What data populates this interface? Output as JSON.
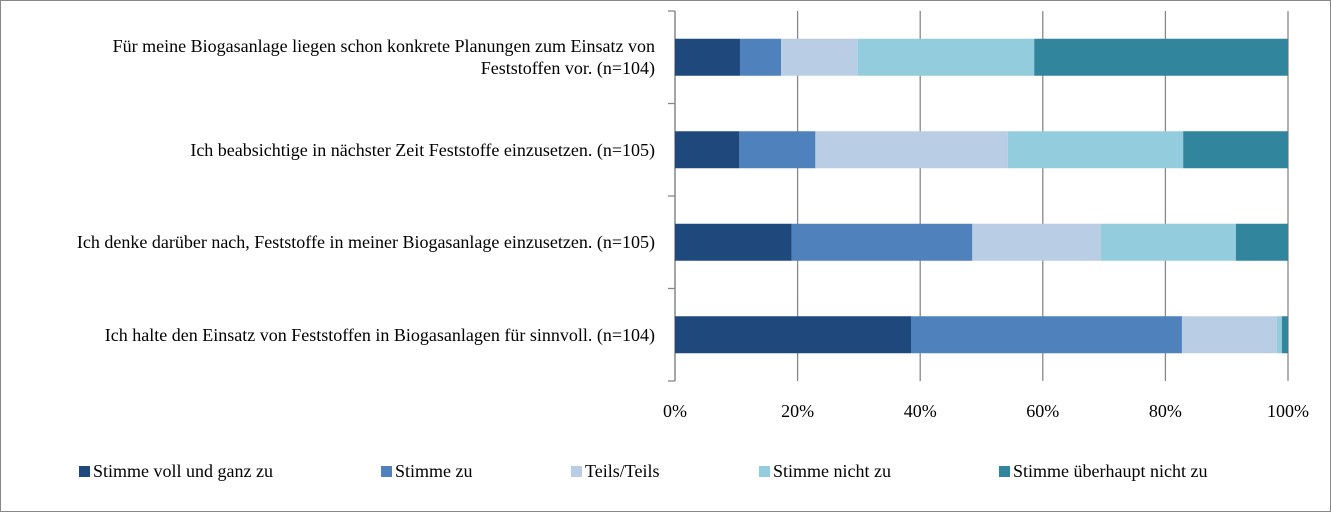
{
  "chart_data": {
    "type": "stacked-bar-horizontal",
    "categories": [
      "Für meine Biogasanlage liegen schon konkrete Planungen zum Einsatz von Feststoffen vor. (n=104)",
      "Ich beabsichtige in nächster Zeit Feststoffe einzusetzen. (n=105)",
      "Ich denke darüber nach, Feststoffe in meiner Biogasanlage einzusetzen. (n=105)",
      "Ich halte den Einsatz von Feststoffen in Biogasanlagen für sinnvoll. (n=104)"
    ],
    "series": [
      {
        "name": "Stimme voll und ganz zu",
        "color": "#1F497D",
        "values": [
          10.6,
          10.5,
          19.0,
          38.5
        ]
      },
      {
        "name": "Stimme zu",
        "color": "#4F81BD",
        "values": [
          6.7,
          12.4,
          29.5,
          44.2
        ]
      },
      {
        "name": "Teils/Teils",
        "color": "#B9CDE5",
        "values": [
          12.5,
          31.4,
          21.0,
          15.5
        ]
      },
      {
        "name": "Stimme nicht zu",
        "color": "#93CDDD",
        "values": [
          28.8,
          28.6,
          22.0,
          0.8
        ]
      },
      {
        "name": "Stimme überhaupt nicht zu",
        "color": "#31859C",
        "values": [
          41.4,
          17.1,
          8.5,
          1.0
        ]
      }
    ],
    "xlim": [
      0,
      100
    ],
    "xticks": [
      {
        "value": 0,
        "label": "0%"
      },
      {
        "value": 20,
        "label": "20%"
      },
      {
        "value": 40,
        "label": "40%"
      },
      {
        "value": 60,
        "label": "60%"
      },
      {
        "value": 80,
        "label": "80%"
      },
      {
        "value": 100,
        "label": "100%"
      }
    ],
    "grid": true,
    "legend": "bottom"
  }
}
